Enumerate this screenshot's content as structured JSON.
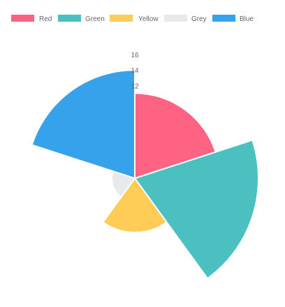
{
  "chart_data": {
    "type": "polarArea",
    "categories": [
      "Red",
      "Green",
      "Yellow",
      "Grey",
      "Blue"
    ],
    "values": [
      11,
      16,
      7,
      3,
      14
    ],
    "colors": [
      "#FF6384",
      "#4BC0C0",
      "#FFCD56",
      "#E7E9ED",
      "#36A2EB"
    ],
    "legend": {
      "position": "top",
      "items": [
        {
          "label": "Red",
          "color": "#FF6384"
        },
        {
          "label": "Green",
          "color": "#4BC0C0"
        },
        {
          "label": "Yellow",
          "color": "#FFCD56"
        },
        {
          "label": "Grey",
          "color": "#E7E9ED"
        },
        {
          "label": "Blue",
          "color": "#36A2EB"
        }
      ]
    },
    "radial_scale": {
      "min": 0,
      "max": 16,
      "visible_tick_labels": [
        "16",
        "14",
        "12"
      ]
    },
    "grid": false,
    "title": "",
    "xlabel": "",
    "ylabel": ""
  }
}
